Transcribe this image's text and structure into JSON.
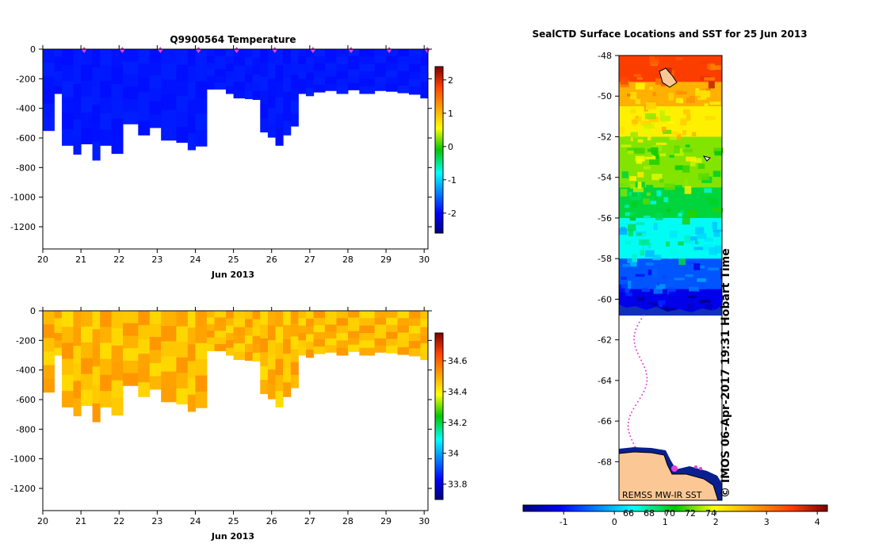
{
  "chart_data": [
    {
      "type": "heatmap",
      "name": "temperature-profile",
      "title": "Q9900564  Temperature",
      "xlabel": "Jun 2013",
      "x_ticks": [
        "20",
        "21",
        "22",
        "23",
        "24",
        "25",
        "26",
        "27",
        "28",
        "29",
        "30"
      ],
      "xlim": [
        20,
        30.1
      ],
      "y_ticks": [
        "0",
        "-200",
        "-400",
        "-600",
        "-800",
        "-1000",
        "-1200"
      ],
      "ylim": [
        -1350,
        0
      ],
      "colorbar": {
        "ticks": [
          "-2",
          "-1",
          "0",
          "1",
          "2"
        ],
        "range": [
          -2.6,
          2.4
        ]
      },
      "value": -1.9,
      "profile_starts": [
        20,
        20.3,
        20.5,
        20.8,
        21.0,
        21.3,
        21.5,
        21.8,
        22.1,
        22.5,
        22.8,
        23.1,
        23.5,
        23.8,
        24.0,
        24.3,
        24.5,
        24.8,
        25.0,
        25.3,
        25.5,
        25.7,
        25.9,
        26.1,
        26.3,
        26.5,
        26.7,
        26.9,
        27.1,
        27.4,
        27.7,
        28.0,
        28.3,
        28.7,
        29.0,
        29.3,
        29.6,
        29.9
      ],
      "profile_depths": [
        -550,
        -300,
        -650,
        -710,
        -640,
        -750,
        -650,
        -705,
        -505,
        -580,
        -530,
        -615,
        -630,
        -680,
        -655,
        -270,
        -270,
        -300,
        -330,
        -335,
        -340,
        -560,
        -595,
        -650,
        -580,
        -520,
        -300,
        -315,
        -290,
        -280,
        -300,
        -275,
        -300,
        -280,
        -285,
        -295,
        -305,
        -330
      ],
      "surface_markers": [
        21.0,
        22.0,
        23.0,
        24.0,
        25.0,
        26.0,
        27.0,
        28.0,
        29.0,
        30.0
      ]
    },
    {
      "type": "heatmap",
      "name": "salinity-profile",
      "title": "",
      "xlabel": "Jun 2013",
      "x_ticks": [
        "20",
        "21",
        "22",
        "23",
        "24",
        "25",
        "26",
        "27",
        "28",
        "29",
        "30"
      ],
      "xlim": [
        20,
        30.1
      ],
      "y_ticks": [
        "0",
        "-200",
        "-400",
        "-600",
        "-800",
        "-1000",
        "-1200"
      ],
      "ylim": [
        -1350,
        0
      ],
      "colorbar": {
        "ticks": [
          "33.8",
          "34",
          "34.2",
          "34.4",
          "34.6"
        ],
        "range": [
          33.7,
          34.78
        ]
      },
      "value": 34.48,
      "profile_starts": [
        20,
        20.3,
        20.5,
        20.8,
        21.0,
        21.3,
        21.5,
        21.8,
        22.1,
        22.5,
        22.8,
        23.1,
        23.5,
        23.8,
        24.0,
        24.3,
        24.5,
        24.8,
        25.0,
        25.3,
        25.5,
        25.7,
        25.9,
        26.1,
        26.3,
        26.5,
        26.7,
        26.9,
        27.1,
        27.4,
        27.7,
        28.0,
        28.3,
        28.7,
        29.0,
        29.3,
        29.6,
        29.9
      ],
      "profile_depths": [
        -550,
        -300,
        -650,
        -710,
        -640,
        -750,
        -650,
        -705,
        -505,
        -580,
        -530,
        -615,
        -630,
        -680,
        -655,
        -270,
        -270,
        -300,
        -330,
        -335,
        -340,
        -560,
        -595,
        -650,
        -580,
        -520,
        -300,
        -315,
        -290,
        -280,
        -300,
        -275,
        -300,
        -280,
        -285,
        -295,
        -305,
        -330
      ]
    },
    {
      "type": "heatmap",
      "name": "sst-map",
      "title": "SealCTD Surface Locations and SST for 25 Jun 2013",
      "y_ticks": [
        "-48",
        "-50",
        "-52",
        "-54",
        "-56",
        "-58",
        "-60",
        "-62",
        "-64",
        "-66",
        "-68"
      ],
      "ylim": [
        -69.9,
        -48
      ],
      "sst_bands": [
        {
          "lat_top": -48.0,
          "lat_bottom": -49.3,
          "sst": 3.5
        },
        {
          "lat_top": -49.3,
          "lat_bottom": -50.5,
          "sst": 2.6
        },
        {
          "lat_top": -50.5,
          "lat_bottom": -52.0,
          "sst": 2.1
        },
        {
          "lat_top": -52.0,
          "lat_bottom": -54.5,
          "sst": 1.6
        },
        {
          "lat_top": -54.5,
          "lat_bottom": -56.0,
          "sst": 1.0
        },
        {
          "lat_top": -56.0,
          "lat_bottom": -58.0,
          "sst": 0.4
        },
        {
          "lat_top": -58.0,
          "lat_bottom": -59.5,
          "sst": -0.6
        },
        {
          "lat_top": -59.5,
          "lat_bottom": -60.9,
          "sst": -1.2
        }
      ],
      "colorbar": {
        "ticks": [
          "-1",
          "0",
          "1",
          "2",
          "3",
          "4"
        ],
        "range": [
          -1.8,
          4.2
        ]
      },
      "colorbar_inner_ticks": [
        "66",
        "68",
        "70",
        "72",
        "74"
      ],
      "source_label": "REMSS MW-IR SST",
      "timestamp_label": "© IMOS 06-Apr-2017 19:31 Hobart Time"
    }
  ],
  "colors": {
    "temperature_fill": "#0d3bbd",
    "salinity_fill": "#f5a811",
    "land": "#fbc895",
    "marker": "#e040e0"
  }
}
